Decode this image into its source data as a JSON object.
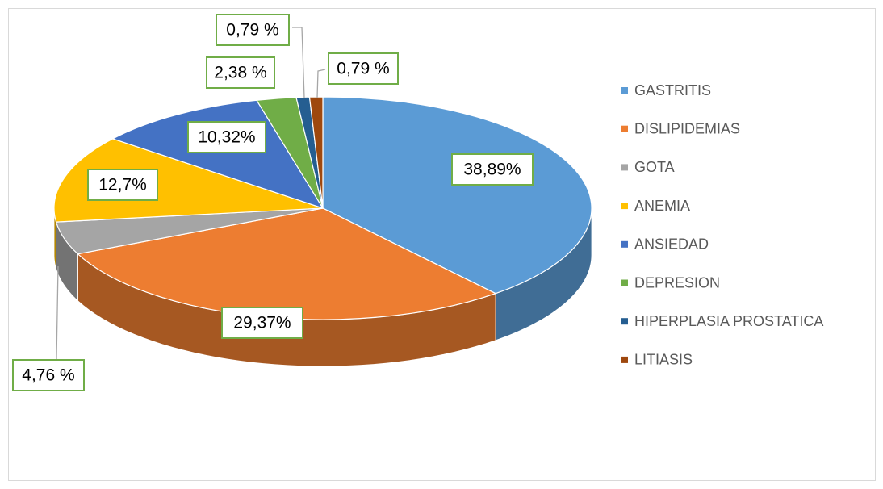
{
  "chart_data": {
    "type": "pie3d",
    "categories": [
      "GASTRITIS",
      "DISLIPIDEMIAS",
      "GOTA",
      "ANEMIA",
      "ANSIEDAD",
      "DEPRESION",
      "HIPERPLASIA PROSTATICA",
      "LITIASIS"
    ],
    "values": [
      38.89,
      29.37,
      4.76,
      12.7,
      10.32,
      2.38,
      0.79,
      0.79
    ],
    "value_labels": [
      "38,89%",
      "29,37%",
      "4,76 %",
      "12,7%",
      "10,32%",
      "2,38 %",
      "0,79 %",
      "0,79 %"
    ],
    "colors": [
      "#5b9bd5",
      "#ed7d31",
      "#a5a5a5",
      "#ffc000",
      "#4472c4",
      "#70ad47",
      "#255e91",
      "#9e480e"
    ],
    "legend": "right"
  }
}
